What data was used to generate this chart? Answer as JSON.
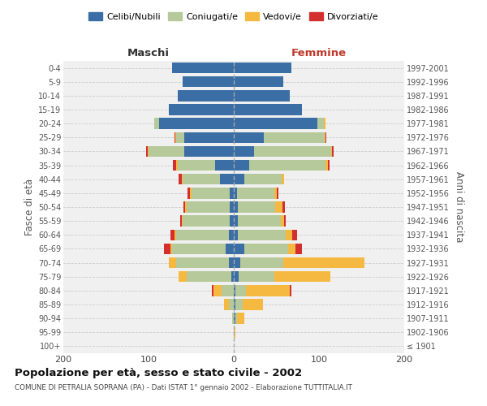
{
  "age_groups": [
    "100+",
    "95-99",
    "90-94",
    "85-89",
    "80-84",
    "75-79",
    "70-74",
    "65-69",
    "60-64",
    "55-59",
    "50-54",
    "45-49",
    "40-44",
    "35-39",
    "30-34",
    "25-29",
    "20-24",
    "15-19",
    "10-14",
    "5-9",
    "0-4"
  ],
  "birth_years": [
    "≤ 1901",
    "1902-1906",
    "1907-1911",
    "1912-1916",
    "1917-1921",
    "1922-1926",
    "1927-1931",
    "1932-1936",
    "1937-1941",
    "1942-1946",
    "1947-1951",
    "1952-1956",
    "1957-1961",
    "1962-1966",
    "1967-1971",
    "1972-1976",
    "1977-1981",
    "1982-1986",
    "1987-1991",
    "1992-1996",
    "1997-2001"
  ],
  "maschi": {
    "celibi": [
      0,
      0,
      0,
      0,
      0,
      3,
      6,
      10,
      6,
      5,
      5,
      5,
      16,
      22,
      58,
      58,
      88,
      76,
      66,
      60,
      72
    ],
    "coniugati": [
      0,
      0,
      2,
      6,
      14,
      52,
      62,
      62,
      62,
      55,
      50,
      45,
      44,
      44,
      42,
      10,
      5,
      0,
      0,
      0,
      0
    ],
    "vedovi": [
      0,
      0,
      0,
      5,
      10,
      10,
      8,
      2,
      2,
      1,
      2,
      1,
      1,
      2,
      1,
      1,
      0,
      0,
      0,
      0,
      0
    ],
    "divorziati": [
      0,
      0,
      0,
      0,
      2,
      0,
      0,
      8,
      4,
      2,
      2,
      3,
      4,
      3,
      2,
      1,
      0,
      0,
      0,
      0,
      0
    ]
  },
  "femmine": {
    "nubili": [
      0,
      0,
      2,
      2,
      2,
      6,
      8,
      12,
      5,
      5,
      5,
      4,
      12,
      18,
      24,
      35,
      98,
      80,
      66,
      58,
      68
    ],
    "coniugate": [
      0,
      0,
      2,
      8,
      12,
      42,
      50,
      52,
      56,
      50,
      44,
      44,
      44,
      90,
      90,
      72,
      8,
      0,
      0,
      0,
      0
    ],
    "vedove": [
      0,
      2,
      8,
      24,
      52,
      65,
      95,
      8,
      8,
      4,
      8,
      2,
      3,
      2,
      1,
      1,
      2,
      0,
      0,
      0,
      0
    ],
    "divorziate": [
      0,
      0,
      0,
      0,
      2,
      0,
      0,
      8,
      5,
      2,
      3,
      2,
      0,
      2,
      2,
      1,
      0,
      0,
      0,
      0,
      0
    ]
  },
  "colors": {
    "celibi": "#3a6ea5",
    "coniugati": "#b5c99a",
    "vedovi": "#f5b942",
    "divorziati": "#d32f2f"
  },
  "xlim": 200,
  "title": "Popolazione per età, sesso e stato civile - 2002",
  "subtitle": "COMUNE DI PETRALIA SOPRANA (PA) - Dati ISTAT 1° gennaio 2002 - Elaborazione TUTTITALIA.IT",
  "ylabel_left": "Fasce di età",
  "ylabel_right": "Anni di nascita",
  "label_maschi": "Maschi",
  "label_femmine": "Femmine",
  "legend": [
    "Celibi/Nubili",
    "Coniugati/e",
    "Vedovi/e",
    "Divorziati/e"
  ]
}
